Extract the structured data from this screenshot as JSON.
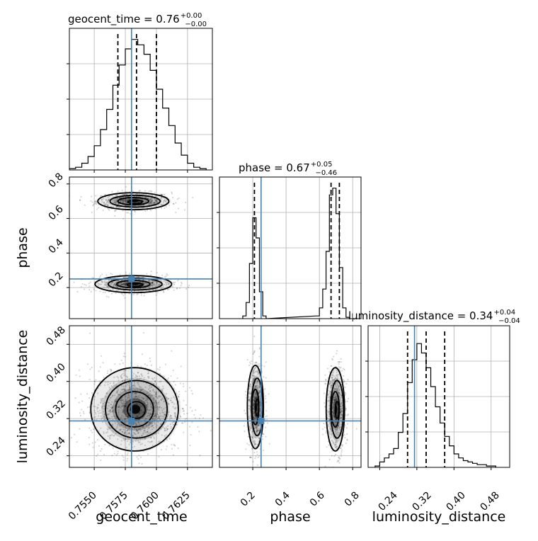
{
  "chart_data": {
    "type": "corner",
    "parameters": [
      "geocent_time",
      "phase",
      "luminosity_distance"
    ],
    "truth_color": "#4682b4",
    "truths": {
      "geocent_time": 0.758,
      "phase": 0.25,
      "luminosity_distance": 0.315
    },
    "panels": [
      {
        "id": "hist-geocent-time",
        "type": "histogram",
        "param": "geocent_time",
        "title": {
          "main": "geocent_time = 0.76",
          "sup": "+0.00",
          "sub": "−0.00"
        },
        "xlim": [
          0.753,
          0.7645
        ],
        "y_max": 1.0,
        "quantiles": [
          0.7569,
          0.7584,
          0.76
        ],
        "bins": [
          [
            0.753,
            0.7535,
            0.01
          ],
          [
            0.7535,
            0.754,
            0.02
          ],
          [
            0.754,
            0.7545,
            0.05
          ],
          [
            0.7545,
            0.755,
            0.1
          ],
          [
            0.755,
            0.7555,
            0.18
          ],
          [
            0.7555,
            0.756,
            0.3
          ],
          [
            0.756,
            0.7565,
            0.45
          ],
          [
            0.7565,
            0.757,
            0.63
          ],
          [
            0.757,
            0.7575,
            0.78
          ],
          [
            0.7575,
            0.758,
            0.9
          ],
          [
            0.758,
            0.7585,
            0.97
          ],
          [
            0.7585,
            0.759,
            0.93
          ],
          [
            0.759,
            0.7595,
            0.86
          ],
          [
            0.7595,
            0.76,
            0.74
          ],
          [
            0.76,
            0.7605,
            0.6
          ],
          [
            0.7605,
            0.761,
            0.46
          ],
          [
            0.761,
            0.7615,
            0.33
          ],
          [
            0.7615,
            0.762,
            0.2
          ],
          [
            0.762,
            0.7625,
            0.11
          ],
          [
            0.7625,
            0.763,
            0.05
          ],
          [
            0.763,
            0.7635,
            0.02
          ],
          [
            0.7635,
            0.764,
            0.01
          ]
        ]
      },
      {
        "id": "hist-phase",
        "type": "histogram",
        "param": "phase",
        "title": {
          "main": "phase = 0.67",
          "sup": "+0.05",
          "sub": "−0.46"
        },
        "xlim": [
          0.0,
          0.85
        ],
        "y_max": 1.0,
        "quantiles": [
          0.21,
          0.67,
          0.72
        ],
        "bins": [
          [
            0.14,
            0.16,
            0.02
          ],
          [
            0.16,
            0.18,
            0.12
          ],
          [
            0.18,
            0.2,
            0.41
          ],
          [
            0.2,
            0.22,
            0.75
          ],
          [
            0.22,
            0.24,
            0.6
          ],
          [
            0.24,
            0.26,
            0.2
          ],
          [
            0.26,
            0.28,
            0.02
          ],
          [
            0.58,
            0.6,
            0.02
          ],
          [
            0.6,
            0.62,
            0.08
          ],
          [
            0.62,
            0.64,
            0.22
          ],
          [
            0.64,
            0.66,
            0.5
          ],
          [
            0.66,
            0.68,
            0.92
          ],
          [
            0.68,
            0.7,
            0.97
          ],
          [
            0.7,
            0.72,
            0.78
          ],
          [
            0.72,
            0.74,
            0.38
          ],
          [
            0.74,
            0.76,
            0.08
          ],
          [
            0.76,
            0.78,
            0.01
          ]
        ]
      },
      {
        "id": "hist-luminosity-distance",
        "type": "histogram",
        "param": "luminosity_distance",
        "title": {
          "main": "luminosity_distance = 0.34",
          "sup": "+0.04",
          "sub": "−0.04"
        },
        "xlim": [
          0.215,
          0.52
        ],
        "y_max": 1.0,
        "quantiles": [
          0.3,
          0.34,
          0.38
        ],
        "bins": [
          [
            0.23,
            0.24,
            0.01
          ],
          [
            0.24,
            0.25,
            0.04
          ],
          [
            0.25,
            0.26,
            0.07
          ],
          [
            0.26,
            0.27,
            0.1
          ],
          [
            0.27,
            0.28,
            0.14
          ],
          [
            0.28,
            0.29,
            0.26
          ],
          [
            0.29,
            0.3,
            0.4
          ],
          [
            0.3,
            0.31,
            0.63
          ],
          [
            0.31,
            0.32,
            0.8
          ],
          [
            0.32,
            0.33,
            0.92
          ],
          [
            0.33,
            0.34,
            0.85
          ],
          [
            0.34,
            0.35,
            0.74
          ],
          [
            0.35,
            0.36,
            0.6
          ],
          [
            0.36,
            0.37,
            0.45
          ],
          [
            0.37,
            0.38,
            0.33
          ],
          [
            0.38,
            0.39,
            0.23
          ],
          [
            0.39,
            0.4,
            0.16
          ],
          [
            0.4,
            0.41,
            0.1
          ],
          [
            0.41,
            0.42,
            0.07
          ],
          [
            0.42,
            0.43,
            0.05
          ],
          [
            0.43,
            0.44,
            0.04
          ],
          [
            0.44,
            0.45,
            0.03
          ],
          [
            0.45,
            0.46,
            0.02
          ],
          [
            0.46,
            0.47,
            0.02
          ],
          [
            0.47,
            0.48,
            0.01
          ],
          [
            0.48,
            0.49,
            0.01
          ]
        ]
      },
      {
        "id": "density-phase-vs-geocent-time",
        "type": "density",
        "x": "geocent_time",
        "y": "phase",
        "xlim": [
          0.753,
          0.7645
        ],
        "ylim": [
          0.02,
          0.84
        ],
        "modes": [
          {
            "cx": 0.7582,
            "cy": 0.7,
            "sx": 0.0013,
            "sy": 0.022,
            "n": 700
          },
          {
            "cx": 0.7582,
            "cy": 0.22,
            "sx": 0.0014,
            "sy": 0.022,
            "n": 600
          }
        ]
      },
      {
        "id": "density-luminosity-distance-vs-geocent-time",
        "type": "density",
        "x": "geocent_time",
        "y": "luminosity_distance",
        "xlim": [
          0.753,
          0.7645
        ],
        "ylim": [
          0.215,
          0.52
        ],
        "modes": [
          {
            "cx": 0.7583,
            "cy": 0.34,
            "sx": 0.0016,
            "sy": 0.04,
            "n": 1300
          }
        ]
      },
      {
        "id": "density-luminosity-distance-vs-phase",
        "type": "density",
        "x": "phase",
        "y": "luminosity_distance",
        "xlim": [
          0.0,
          0.85
        ],
        "ylim": [
          0.215,
          0.52
        ],
        "modes": [
          {
            "cx": 0.22,
            "cy": 0.345,
            "sx": 0.022,
            "sy": 0.04,
            "n": 650
          },
          {
            "cx": 0.7,
            "cy": 0.34,
            "sx": 0.025,
            "sy": 0.04,
            "n": 700
          }
        ]
      }
    ],
    "tick_labels": {
      "geocent_time_x": [
        "0.7550",
        "0.7575",
        "0.7600",
        "0.7625"
      ],
      "phase_x": [
        "0.2",
        "0.4",
        "0.6",
        "0.8"
      ],
      "luminosity_distance_x": [
        "0.24",
        "0.32",
        "0.40",
        "0.48"
      ],
      "phase_y": [
        "0.2",
        "0.4",
        "0.6",
        "0.8"
      ],
      "luminosity_distance_y": [
        "0.24",
        "0.32",
        "0.40",
        "0.48"
      ]
    },
    "axis_labels": {
      "x_col1": "geocent_time",
      "x_col2": "phase",
      "x_col3": "luminosity_distance",
      "y_row2": "phase",
      "y_row3": "luminosity_distance"
    },
    "grid": true
  }
}
